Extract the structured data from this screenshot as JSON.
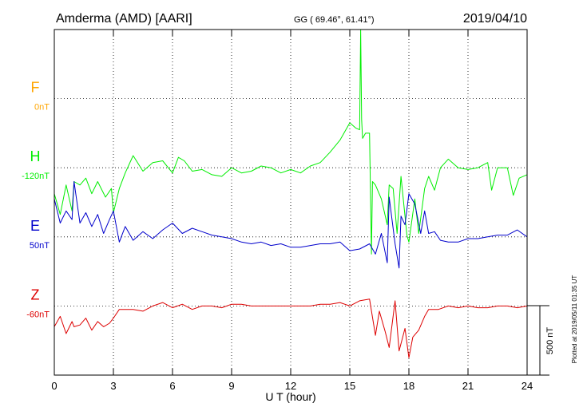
{
  "header": {
    "station": "Amderma (AMD)  [AARI]",
    "coords": "GG ( 69.46°,  61.41°)",
    "date": "2019/04/10"
  },
  "side_note": "Plotted at 2019/05/11 01:35 UT",
  "scale_bar_label": "500 nT",
  "colors": {
    "F": "#ffa500",
    "H": "#00ee00",
    "E": "#0000cc",
    "Z": "#dd0000"
  },
  "chart_data": {
    "type": "line",
    "title": "",
    "xlabel": "U T (hour)",
    "ylabel": "",
    "xlim": [
      0,
      24
    ],
    "x_ticks": [
      0,
      3,
      6,
      9,
      12,
      15,
      18,
      21,
      24
    ],
    "tick_labels": [
      "0",
      "3",
      "6",
      "9",
      "12",
      "15",
      "18",
      "21",
      "24"
    ],
    "grid": true,
    "grid_style": "dotted",
    "panel_range_nT": 2000,
    "scale_bar_nT": 500,
    "series": [
      {
        "name": "F",
        "baseline_label": "0nT",
        "level_index": 1,
        "x": [],
        "values": []
      },
      {
        "name": "H",
        "baseline_label": "-120nT",
        "level_index": 2,
        "x": [
          0,
          0.3,
          0.6,
          0.9,
          1.0,
          1.3,
          1.6,
          1.9,
          2.2,
          2.6,
          2.9,
          3.0,
          3.3,
          3.6,
          4.0,
          4.5,
          5.0,
          5.5,
          6.0,
          6.3,
          6.6,
          7.0,
          7.5,
          8.0,
          8.5,
          9.0,
          9.5,
          10.0,
          10.5,
          11.0,
          11.5,
          12.0,
          12.5,
          13.0,
          13.5,
          14.0,
          14.5,
          15.0,
          15.3,
          15.5,
          15.55,
          15.6,
          15.65,
          15.8,
          16.0,
          16.1,
          16.15,
          16.3,
          16.6,
          16.9,
          17.0,
          17.2,
          17.4,
          17.6,
          17.9,
          18.0,
          18.3,
          18.5,
          18.8,
          19.0,
          19.3,
          19.6,
          20.0,
          20.5,
          21.0,
          21.5,
          22.0,
          22.2,
          22.5,
          23.0,
          23.3,
          23.6,
          24.0
        ],
        "values": [
          -150,
          -270,
          -100,
          -250,
          -80,
          -100,
          -60,
          -150,
          -80,
          -170,
          -120,
          -260,
          -120,
          -30,
          70,
          -20,
          30,
          40,
          -30,
          60,
          40,
          -20,
          -10,
          -40,
          -50,
          0,
          -30,
          -20,
          10,
          0,
          -30,
          -10,
          -30,
          10,
          30,
          90,
          160,
          260,
          230,
          220,
          1950,
          280,
          170,
          200,
          200,
          -500,
          -80,
          -100,
          -180,
          -330,
          -100,
          -120,
          -380,
          -50,
          -390,
          -430,
          -180,
          -380,
          -120,
          -50,
          -130,
          0,
          50,
          0,
          -10,
          0,
          30,
          -130,
          0,
          0,
          -160,
          -60,
          -40
        ]
      },
      {
        "name": "E",
        "baseline_label": "50nT",
        "level_index": 3,
        "x": [
          0,
          0.3,
          0.6,
          0.9,
          1.0,
          1.3,
          1.6,
          1.9,
          2.2,
          2.5,
          2.8,
          3.0,
          3.3,
          3.6,
          4.0,
          4.5,
          5.0,
          5.5,
          6.0,
          6.5,
          7.0,
          7.5,
          8.0,
          8.5,
          9.0,
          9.5,
          10.0,
          10.5,
          11.0,
          11.5,
          12.0,
          12.5,
          13.0,
          13.5,
          14.0,
          14.5,
          15.0,
          15.5,
          16.0,
          16.3,
          16.6,
          16.9,
          17.0,
          17.3,
          17.5,
          17.6,
          17.8,
          18.0,
          18.3,
          18.6,
          18.8,
          19.0,
          19.3,
          19.6,
          20.0,
          20.5,
          21.0,
          21.5,
          22.0,
          22.5,
          23.0,
          23.5,
          24.0
        ],
        "values": [
          220,
          80,
          150,
          100,
          320,
          80,
          140,
          60,
          130,
          20,
          100,
          150,
          -30,
          60,
          -20,
          30,
          -10,
          40,
          80,
          20,
          50,
          30,
          10,
          0,
          -10,
          -30,
          -40,
          -30,
          -50,
          -40,
          -60,
          -60,
          -50,
          -40,
          -40,
          -30,
          -80,
          -70,
          -40,
          -100,
          20,
          -150,
          230,
          -40,
          -180,
          120,
          70,
          250,
          190,
          20,
          150,
          20,
          30,
          -20,
          -30,
          -30,
          -10,
          -10,
          0,
          10,
          10,
          40,
          0
        ]
      },
      {
        "name": "Z",
        "baseline_label": "-60nT",
        "level_index": 4,
        "x": [
          0,
          0.3,
          0.6,
          0.9,
          1.0,
          1.3,
          1.6,
          1.9,
          2.2,
          2.5,
          2.8,
          3.0,
          3.3,
          3.6,
          4.0,
          4.5,
          5.0,
          5.5,
          6.0,
          6.5,
          7.0,
          7.5,
          8.0,
          8.5,
          9.0,
          9.5,
          10.0,
          10.5,
          11.0,
          11.5,
          12.0,
          12.5,
          13.0,
          13.5,
          14.0,
          14.5,
          15.0,
          15.5,
          16.0,
          16.3,
          16.5,
          16.8,
          17.0,
          17.3,
          17.5,
          17.8,
          18.0,
          18.2,
          18.5,
          18.8,
          19.0,
          19.5,
          20.0,
          20.5,
          21.0,
          21.5,
          22.0,
          22.5,
          23.0,
          23.5,
          24.0
        ],
        "values": [
          -120,
          -60,
          -160,
          -90,
          -120,
          -110,
          -70,
          -140,
          -90,
          -120,
          -100,
          -70,
          -20,
          -20,
          -20,
          -30,
          0,
          20,
          -10,
          10,
          -20,
          0,
          0,
          -10,
          10,
          10,
          0,
          0,
          0,
          0,
          0,
          0,
          0,
          10,
          10,
          20,
          0,
          30,
          40,
          -170,
          -30,
          -150,
          -240,
          30,
          -260,
          -130,
          -300,
          -180,
          -140,
          -60,
          -20,
          -20,
          0,
          -10,
          0,
          -10,
          -10,
          0,
          0,
          -10,
          0
        ]
      }
    ]
  }
}
